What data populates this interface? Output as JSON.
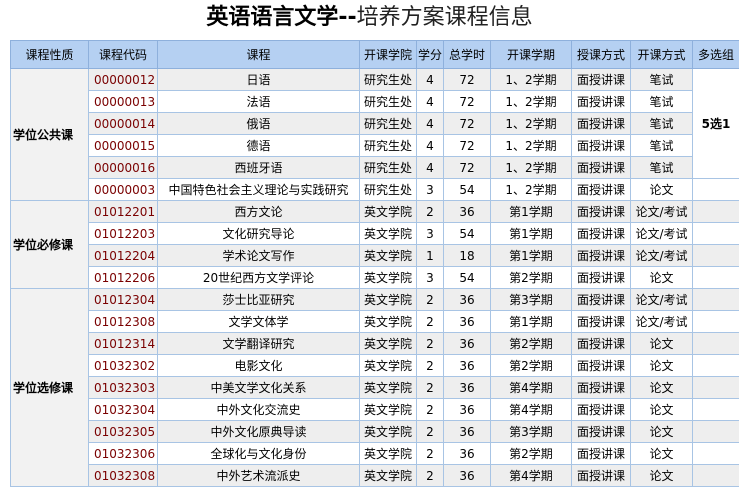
{
  "header": {
    "title_main": "英语语言文学--",
    "title_sub": "培养方案课程信息"
  },
  "table": {
    "columns": [
      "课程性质",
      "课程代码",
      "课程",
      "开课学院",
      "学分",
      "总学时",
      "开课学期",
      "授课方式",
      "开课方式",
      "多选组"
    ],
    "multi_group": "5选1",
    "groups": [
      {
        "name": "学位公共课",
        "rows": [
          [
            "00000012",
            "日语",
            "研究生处",
            4,
            72,
            "1、2学期",
            "面授讲课",
            "笔试"
          ],
          [
            "00000013",
            "法语",
            "研究生处",
            4,
            72,
            "1、2学期",
            "面授讲课",
            "笔试"
          ],
          [
            "00000014",
            "俄语",
            "研究生处",
            4,
            72,
            "1、2学期",
            "面授讲课",
            "笔试"
          ],
          [
            "00000015",
            "德语",
            "研究生处",
            4,
            72,
            "1、2学期",
            "面授讲课",
            "笔试"
          ],
          [
            "00000016",
            "西班牙语",
            "研究生处",
            4,
            72,
            "1、2学期",
            "面授讲课",
            "笔试"
          ],
          [
            "00000003",
            "中国特色社会主义理论与实践研究",
            "研究生处",
            3,
            54,
            "1、2学期",
            "面授讲课",
            "论文"
          ]
        ]
      },
      {
        "name": "学位必修课",
        "rows": [
          [
            "01012201",
            "西方文论",
            "英文学院",
            2,
            36,
            "第1学期",
            "面授讲课",
            "论文/考试"
          ],
          [
            "01012203",
            "文化研究导论",
            "英文学院",
            3,
            54,
            "第1学期",
            "面授讲课",
            "论文/考试"
          ],
          [
            "01012204",
            "学术论文写作",
            "英文学院",
            1,
            18,
            "第1学期",
            "面授讲课",
            "论文/考试"
          ],
          [
            "01012206",
            "20世纪西方文学评论",
            "英文学院",
            3,
            54,
            "第2学期",
            "面授讲课",
            "论文"
          ]
        ]
      },
      {
        "name": "学位选修课",
        "rows": [
          [
            "01012304",
            "莎士比亚研究",
            "英文学院",
            2,
            36,
            "第3学期",
            "面授讲课",
            "论文/考试"
          ],
          [
            "01012308",
            "文学文体学",
            "英文学院",
            2,
            36,
            "第1学期",
            "面授讲课",
            "论文/考试"
          ],
          [
            "01012314",
            "文学翻译研究",
            "英文学院",
            2,
            36,
            "第2学期",
            "面授讲课",
            "论文"
          ],
          [
            "01032302",
            "电影文化",
            "英文学院",
            2,
            36,
            "第2学期",
            "面授讲课",
            "论文"
          ],
          [
            "01032303",
            "中美文学文化关系",
            "英文学院",
            2,
            36,
            "第4学期",
            "面授讲课",
            "论文"
          ],
          [
            "01032304",
            "中外文化交流史",
            "英文学院",
            2,
            36,
            "第4学期",
            "面授讲课",
            "论文"
          ],
          [
            "01032305",
            "中外文化原典导读",
            "英文学院",
            2,
            36,
            "第3学期",
            "面授讲课",
            "论文"
          ],
          [
            "01032306",
            "全球化与文化身份",
            "英文学院",
            2,
            36,
            "第2学期",
            "面授讲课",
            "论文"
          ],
          [
            "01032308",
            "中外艺术流派史",
            "英文学院",
            2,
            36,
            "第4学期",
            "面授讲课",
            "论文"
          ]
        ]
      }
    ]
  }
}
